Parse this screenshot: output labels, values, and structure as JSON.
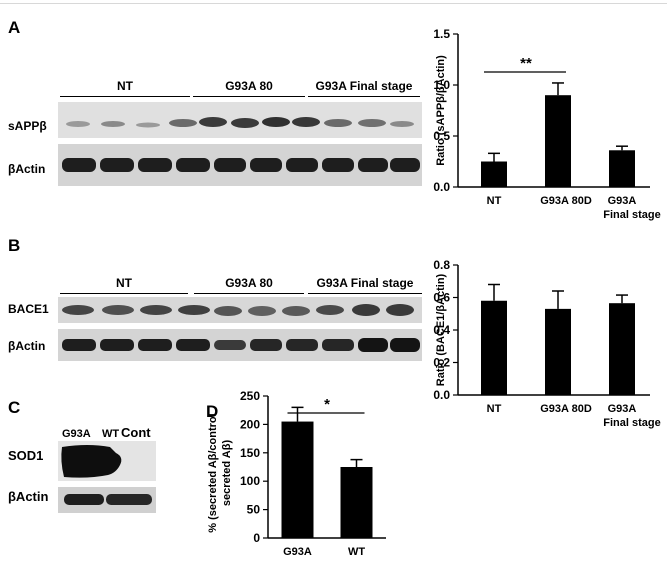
{
  "panels": {
    "A": {
      "letter": "A",
      "groups": [
        "NT",
        "G93A 80",
        "G93A Final stage"
      ],
      "rows": [
        "sAPPβ",
        "βActin"
      ]
    },
    "B": {
      "letter": "B",
      "groups": [
        "NT",
        "G93A 80",
        "G93A Final stage"
      ],
      "rows": [
        "BACE1",
        "βActin"
      ]
    },
    "C": {
      "letter": "C",
      "lanes": [
        "G93A",
        "WT",
        "Cont"
      ],
      "rows": [
        "SOD1",
        "βActin"
      ]
    },
    "D": {
      "letter": "D"
    }
  },
  "colors": {
    "bar": "#000000",
    "blot_bg": "#dcdcdc",
    "band": "#2a2a2a"
  },
  "chart_data": [
    {
      "id": "A",
      "type": "bar",
      "categories": [
        "NT",
        "G93A  80D",
        "G93A"
      ],
      "category_sublabels": [
        "",
        "",
        "Final stage"
      ],
      "values": [
        0.25,
        0.9,
        0.36
      ],
      "errors": [
        0.08,
        0.12,
        0.04
      ],
      "ylabel": "Ratio (sAPPβ/βActin)",
      "ylim": [
        0,
        1.5
      ],
      "yticks": [
        "0.0",
        "0.5",
        "1.0",
        "1.5"
      ],
      "yticks_values": [
        0,
        0.5,
        1.0,
        1.5
      ],
      "significance": {
        "from": 0,
        "to": 1,
        "label": "**"
      }
    },
    {
      "id": "B",
      "type": "bar",
      "categories": [
        "NT",
        "G93A  80D",
        "G93A"
      ],
      "category_sublabels": [
        "",
        "",
        "Final stage"
      ],
      "values": [
        0.58,
        0.53,
        0.565
      ],
      "errors": [
        0.1,
        0.11,
        0.05
      ],
      "ylabel": "Ratio (BACE1/βActin)",
      "ylim": [
        0,
        0.8
      ],
      "yticks": [
        "0.0",
        "0.2",
        "0.4",
        "0.6",
        "0.8"
      ],
      "yticks_values": [
        0,
        0.2,
        0.4,
        0.6,
        0.8
      ]
    },
    {
      "id": "D",
      "type": "bar",
      "categories": [
        "G93A",
        "WT"
      ],
      "values": [
        205,
        125
      ],
      "errors": [
        25,
        13
      ],
      "ylabel_lines": [
        "% (secreted Aβ/control",
        "secreted Aβ)"
      ],
      "ylim": [
        0,
        250
      ],
      "yticks": [
        "0",
        "50",
        "100",
        "150",
        "200",
        "250"
      ],
      "yticks_values": [
        0,
        50,
        100,
        150,
        200,
        250
      ],
      "significance": {
        "from": 0,
        "to": 1,
        "label": "*"
      }
    }
  ]
}
